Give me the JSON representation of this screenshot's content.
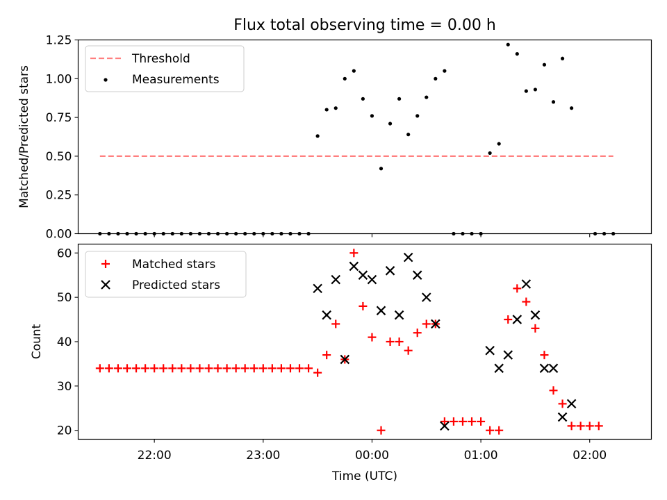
{
  "title": "Flux total observing time = 0.00 h",
  "colors": {
    "threshold": "#ff7f7f",
    "measurements": "#000000",
    "matched": "#ff0000",
    "predicted": "#000000"
  },
  "chart_data": [
    {
      "type": "scatter",
      "ylabel": "Matched/Predicted stars",
      "ylim": [
        0,
        1.25
      ],
      "yticks": [
        "0.00",
        "0.25",
        "0.50",
        "0.75",
        "1.00",
        "1.25"
      ],
      "legend": {
        "placement": "top-left",
        "entries": [
          "Threshold",
          "Measurements"
        ]
      },
      "threshold": {
        "name": "Threshold",
        "y": 0.5,
        "x_range": [
          "21:30",
          "02:13"
        ]
      },
      "series": [
        {
          "name": "Measurements",
          "points": [
            [
              "21:30",
              0
            ],
            [
              "21:35",
              0
            ],
            [
              "21:40",
              0
            ],
            [
              "21:45",
              0
            ],
            [
              "21:50",
              0
            ],
            [
              "21:55",
              0
            ],
            [
              "22:00",
              0
            ],
            [
              "22:05",
              0
            ],
            [
              "22:10",
              0
            ],
            [
              "22:15",
              0
            ],
            [
              "22:20",
              0
            ],
            [
              "22:25",
              0
            ],
            [
              "22:30",
              0
            ],
            [
              "22:35",
              0
            ],
            [
              "22:40",
              0
            ],
            [
              "22:45",
              0
            ],
            [
              "22:50",
              0
            ],
            [
              "22:55",
              0
            ],
            [
              "23:00",
              0
            ],
            [
              "23:05",
              0
            ],
            [
              "23:10",
              0
            ],
            [
              "23:15",
              0
            ],
            [
              "23:20",
              0
            ],
            [
              "23:25",
              0
            ],
            [
              "23:30",
              0.63
            ],
            [
              "23:35",
              0.8
            ],
            [
              "23:40",
              0.81
            ],
            [
              "23:45",
              1.0
            ],
            [
              "23:50",
              1.05
            ],
            [
              "23:55",
              0.87
            ],
            [
              "00:00",
              0.76
            ],
            [
              "00:05",
              0.42
            ],
            [
              "00:10",
              0.71
            ],
            [
              "00:15",
              0.87
            ],
            [
              "00:20",
              0.64
            ],
            [
              "00:25",
              0.76
            ],
            [
              "00:30",
              0.88
            ],
            [
              "00:35",
              1.0
            ],
            [
              "00:40",
              1.05
            ],
            [
              "00:45",
              0
            ],
            [
              "00:50",
              0
            ],
            [
              "00:55",
              0
            ],
            [
              "01:00",
              0
            ],
            [
              "01:05",
              0.52
            ],
            [
              "01:10",
              0.58
            ],
            [
              "01:15",
              1.22
            ],
            [
              "01:20",
              1.16
            ],
            [
              "01:25",
              0.92
            ],
            [
              "01:30",
              0.93
            ],
            [
              "01:35",
              1.09
            ],
            [
              "01:40",
              0.85
            ],
            [
              "01:45",
              1.13
            ],
            [
              "01:50",
              0.81
            ],
            [
              "02:03",
              0
            ],
            [
              "02:08",
              0
            ],
            [
              "02:13",
              0
            ]
          ]
        }
      ]
    },
    {
      "type": "scatter",
      "ylabel": "Count",
      "xlabel": "Time (UTC)",
      "ylim": [
        18,
        62
      ],
      "yticks": [
        "20",
        "30",
        "40",
        "50",
        "60"
      ],
      "xticks": [
        "22:00",
        "23:00",
        "00:00",
        "01:00",
        "02:00"
      ],
      "legend": {
        "placement": "top-left",
        "entries": [
          "Matched stars",
          "Predicted stars"
        ]
      },
      "series": [
        {
          "name": "Matched stars",
          "points": [
            [
              "21:30",
              34
            ],
            [
              "21:35",
              34
            ],
            [
              "21:40",
              34
            ],
            [
              "21:45",
              34
            ],
            [
              "21:50",
              34
            ],
            [
              "21:55",
              34
            ],
            [
              "22:00",
              34
            ],
            [
              "22:05",
              34
            ],
            [
              "22:10",
              34
            ],
            [
              "22:15",
              34
            ],
            [
              "22:20",
              34
            ],
            [
              "22:25",
              34
            ],
            [
              "22:30",
              34
            ],
            [
              "22:35",
              34
            ],
            [
              "22:40",
              34
            ],
            [
              "22:45",
              34
            ],
            [
              "22:50",
              34
            ],
            [
              "22:55",
              34
            ],
            [
              "23:00",
              34
            ],
            [
              "23:05",
              34
            ],
            [
              "23:10",
              34
            ],
            [
              "23:15",
              34
            ],
            [
              "23:20",
              34
            ],
            [
              "23:25",
              34
            ],
            [
              "23:30",
              33
            ],
            [
              "23:35",
              37
            ],
            [
              "23:40",
              44
            ],
            [
              "23:45",
              36
            ],
            [
              "23:50",
              60
            ],
            [
              "23:55",
              48
            ],
            [
              "00:00",
              41
            ],
            [
              "00:05",
              20
            ],
            [
              "00:10",
              40
            ],
            [
              "00:15",
              40
            ],
            [
              "00:20",
              38
            ],
            [
              "00:25",
              42
            ],
            [
              "00:30",
              44
            ],
            [
              "00:35",
              44
            ],
            [
              "00:40",
              22
            ],
            [
              "00:45",
              22
            ],
            [
              "00:50",
              22
            ],
            [
              "00:55",
              22
            ],
            [
              "01:00",
              22
            ],
            [
              "01:05",
              20
            ],
            [
              "01:10",
              20
            ],
            [
              "01:15",
              45
            ],
            [
              "01:20",
              52
            ],
            [
              "01:25",
              49
            ],
            [
              "01:30",
              43
            ],
            [
              "01:35",
              37
            ],
            [
              "01:40",
              29
            ],
            [
              "01:45",
              26
            ],
            [
              "01:50",
              21
            ],
            [
              "01:55",
              21
            ],
            [
              "02:00",
              21
            ],
            [
              "02:05",
              21
            ]
          ]
        },
        {
          "name": "Predicted stars",
          "points": [
            [
              "23:30",
              52
            ],
            [
              "23:35",
              46
            ],
            [
              "23:40",
              54
            ],
            [
              "23:45",
              36
            ],
            [
              "23:50",
              57
            ],
            [
              "23:55",
              55
            ],
            [
              "00:00",
              54
            ],
            [
              "00:05",
              47
            ],
            [
              "00:10",
              56
            ],
            [
              "00:15",
              46
            ],
            [
              "00:20",
              59
            ],
            [
              "00:25",
              55
            ],
            [
              "00:30",
              50
            ],
            [
              "00:35",
              44
            ],
            [
              "00:40",
              21
            ],
            [
              "01:05",
              38
            ],
            [
              "01:10",
              34
            ],
            [
              "01:15",
              37
            ],
            [
              "01:20",
              45
            ],
            [
              "01:25",
              53
            ],
            [
              "01:30",
              46
            ],
            [
              "01:35",
              34
            ],
            [
              "01:40",
              34
            ],
            [
              "01:45",
              23
            ],
            [
              "01:50",
              26
            ]
          ]
        }
      ]
    }
  ]
}
